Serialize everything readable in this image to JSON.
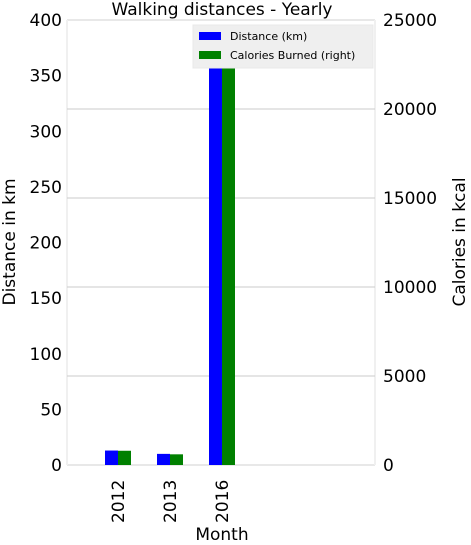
{
  "chart_data": {
    "type": "bar",
    "title": "Walking distances - Yearly",
    "xlabel": "Month",
    "ylabel": "Distance in km",
    "ylabel_right": "Calories in kcal",
    "categories": [
      "2012",
      "2013",
      "2016"
    ],
    "ylim": [
      0,
      400
    ],
    "ylim_right": [
      0,
      25000
    ],
    "yticks": [
      "0",
      "50",
      "100",
      "150",
      "200",
      "250",
      "300",
      "350",
      "400"
    ],
    "yticks_right": [
      "0",
      "5000",
      "10000",
      "15000",
      "20000",
      "25000"
    ],
    "series": [
      {
        "name": "Distance (km)",
        "axis": "left",
        "color": "#0000ff",
        "values": [
          13,
          10,
          357
        ]
      },
      {
        "name": "Calories Burned (right)",
        "axis": "right",
        "color": "#008000",
        "values": [
          800,
          600,
          22750
        ]
      }
    ],
    "grid": true,
    "legend_position": "top-right"
  }
}
